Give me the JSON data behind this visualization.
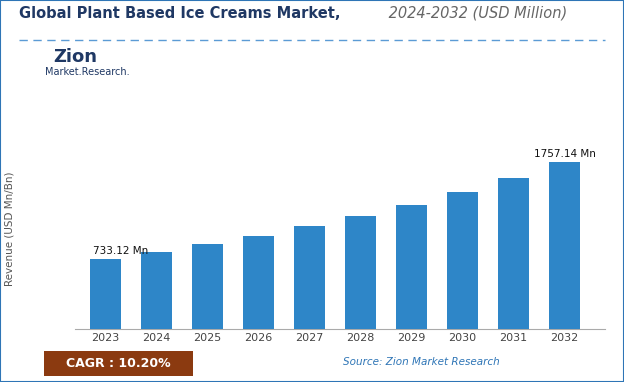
{
  "title_bold": "Global Plant Based Ice Creams Market,",
  "title_italic": " 2024-2032 (USD Million)",
  "years": [
    2023,
    2024,
    2025,
    2026,
    2027,
    2028,
    2029,
    2030,
    2031,
    2032
  ],
  "values": [
    733.12,
    807.32,
    889.28,
    979.58,
    1078.85,
    1187.96,
    1308.03,
    1440.34,
    1586.3,
    1757.14
  ],
  "bar_color": "#2E86C8",
  "ylabel": "Revenue (USD Mn/Bn)",
  "ylim": [
    0,
    2100
  ],
  "first_label": "733.12 Mn",
  "last_label": "1757.14 Mn",
  "cagr_text": "CAGR : 10.20%",
  "cagr_bg": "#8B3A10",
  "cagr_fg": "#FFFFFF",
  "source_text": "Source: Zion Market Research",
  "source_color": "#2E75B6",
  "bg_color": "#ffffff",
  "separator_line_color": "#5B9BD5",
  "tick_label_color": "#444444",
  "axis_label_color": "#555555",
  "annotation_color": "#111111",
  "title_bold_color": "#1F3864",
  "title_italic_color": "#666666",
  "border_color": "#2E75B6"
}
